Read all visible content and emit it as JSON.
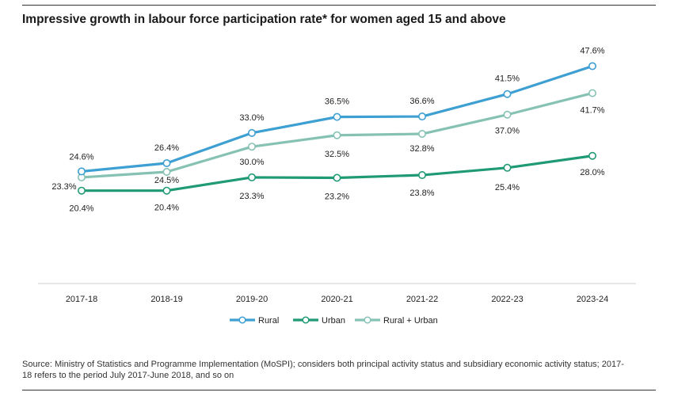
{
  "title": "Impressive growth in labour force participation rate* for women aged 15 and above",
  "source": "Source: Ministry of Statistics and Programme Implementation (MoSPI); considers both principal activity status and subsidiary economic activity status; 2017-18 refers to the period July 2017-June 2018, and so on",
  "chart_data": {
    "type": "line",
    "title": "Impressive growth in labour force participation rate* for women aged 15 and above",
    "xlabel": "",
    "ylabel": "",
    "ylim": [
      0,
      50
    ],
    "grid": false,
    "legend_position": "bottom-center",
    "categories": [
      "2017-18",
      "2018-19",
      "2019-20",
      "2020-21",
      "2021-22",
      "2022-23",
      "2023-24"
    ],
    "series": [
      {
        "name": "Rural",
        "color": "#3d9fd2",
        "values": [
          24.6,
          26.4,
          33.0,
          36.5,
          36.6,
          41.5,
          47.6
        ],
        "labels": [
          "24.6%",
          "26.4%",
          "33.0%",
          "36.5%",
          "36.6%",
          "41.5%",
          "47.6%"
        ]
      },
      {
        "name": "Urban",
        "color": "#1f9a74",
        "values": [
          20.4,
          20.4,
          23.3,
          23.2,
          23.8,
          25.4,
          28.0
        ],
        "labels": [
          "20.4%",
          "20.4%",
          "23.3%",
          "23.2%",
          "23.8%",
          "25.4%",
          "28.0%"
        ]
      },
      {
        "name": "Rural + Urban",
        "color": "#86c2b4",
        "values": [
          23.3,
          24.5,
          30.0,
          32.5,
          32.8,
          37.0,
          41.7
        ],
        "labels": [
          "23.3%",
          "24.5%",
          "30.0%",
          "32.5%",
          "32.8%",
          "37.0%",
          "41.7%"
        ]
      }
    ]
  }
}
